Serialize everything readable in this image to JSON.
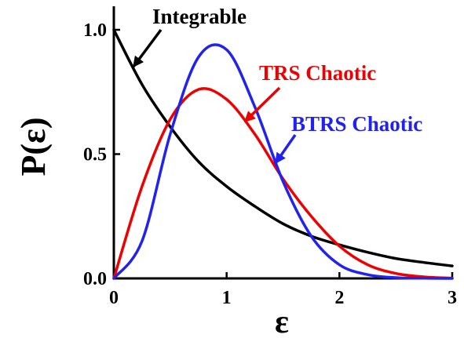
{
  "chart_data": {
    "type": "line",
    "xlabel": "ε",
    "ylabel": "P(ε)",
    "xlim": [
      0,
      3
    ],
    "ylim": [
      0,
      1.0
    ],
    "x_ticks": [
      0,
      1,
      2,
      3
    ],
    "x_tick_labels": [
      "0",
      "1",
      "2",
      "3"
    ],
    "y_ticks": [
      0.0,
      0.5,
      1.0
    ],
    "y_tick_labels": [
      "0.0",
      "0.5",
      "1.0"
    ],
    "grid": false,
    "legend": "none",
    "series": [
      {
        "name": "Integrable",
        "color": "#000000",
        "x": [
          0,
          0.25,
          0.5,
          0.75,
          1.0,
          1.25,
          1.5,
          1.75,
          2.0,
          2.25,
          2.5,
          2.75,
          3.0
        ],
        "y": [
          1.0,
          0.78,
          0.61,
          0.47,
          0.37,
          0.29,
          0.22,
          0.17,
          0.135,
          0.105,
          0.08,
          0.064,
          0.05
        ]
      },
      {
        "name": "TRS Chaotic",
        "color": "#ee0000",
        "x": [
          0,
          0.25,
          0.5,
          0.75,
          1.0,
          1.25,
          1.5,
          1.75,
          2.0,
          2.25,
          2.5,
          2.75,
          3.0
        ],
        "y": [
          0.0,
          0.37,
          0.64,
          0.76,
          0.72,
          0.58,
          0.4,
          0.25,
          0.13,
          0.055,
          0.02,
          0.006,
          0.001
        ]
      },
      {
        "name": "BTRS Chaotic",
        "color": "#2222ee",
        "x": [
          0,
          0.25,
          0.5,
          0.75,
          1.0,
          1.25,
          1.5,
          1.75,
          2.0,
          2.25,
          2.5,
          2.75,
          3.0
        ],
        "y": [
          0.0,
          0.15,
          0.58,
          0.89,
          0.92,
          0.69,
          0.39,
          0.17,
          0.055,
          0.015,
          0.003,
          0.0005,
          0.0
        ]
      }
    ],
    "annotations": [
      {
        "text": "Integrable",
        "color": "#000000"
      },
      {
        "text": "TRS Chaotic",
        "color": "#ee0000"
      },
      {
        "text": "BTRS Chaotic",
        "color": "#2222ee"
      }
    ]
  }
}
